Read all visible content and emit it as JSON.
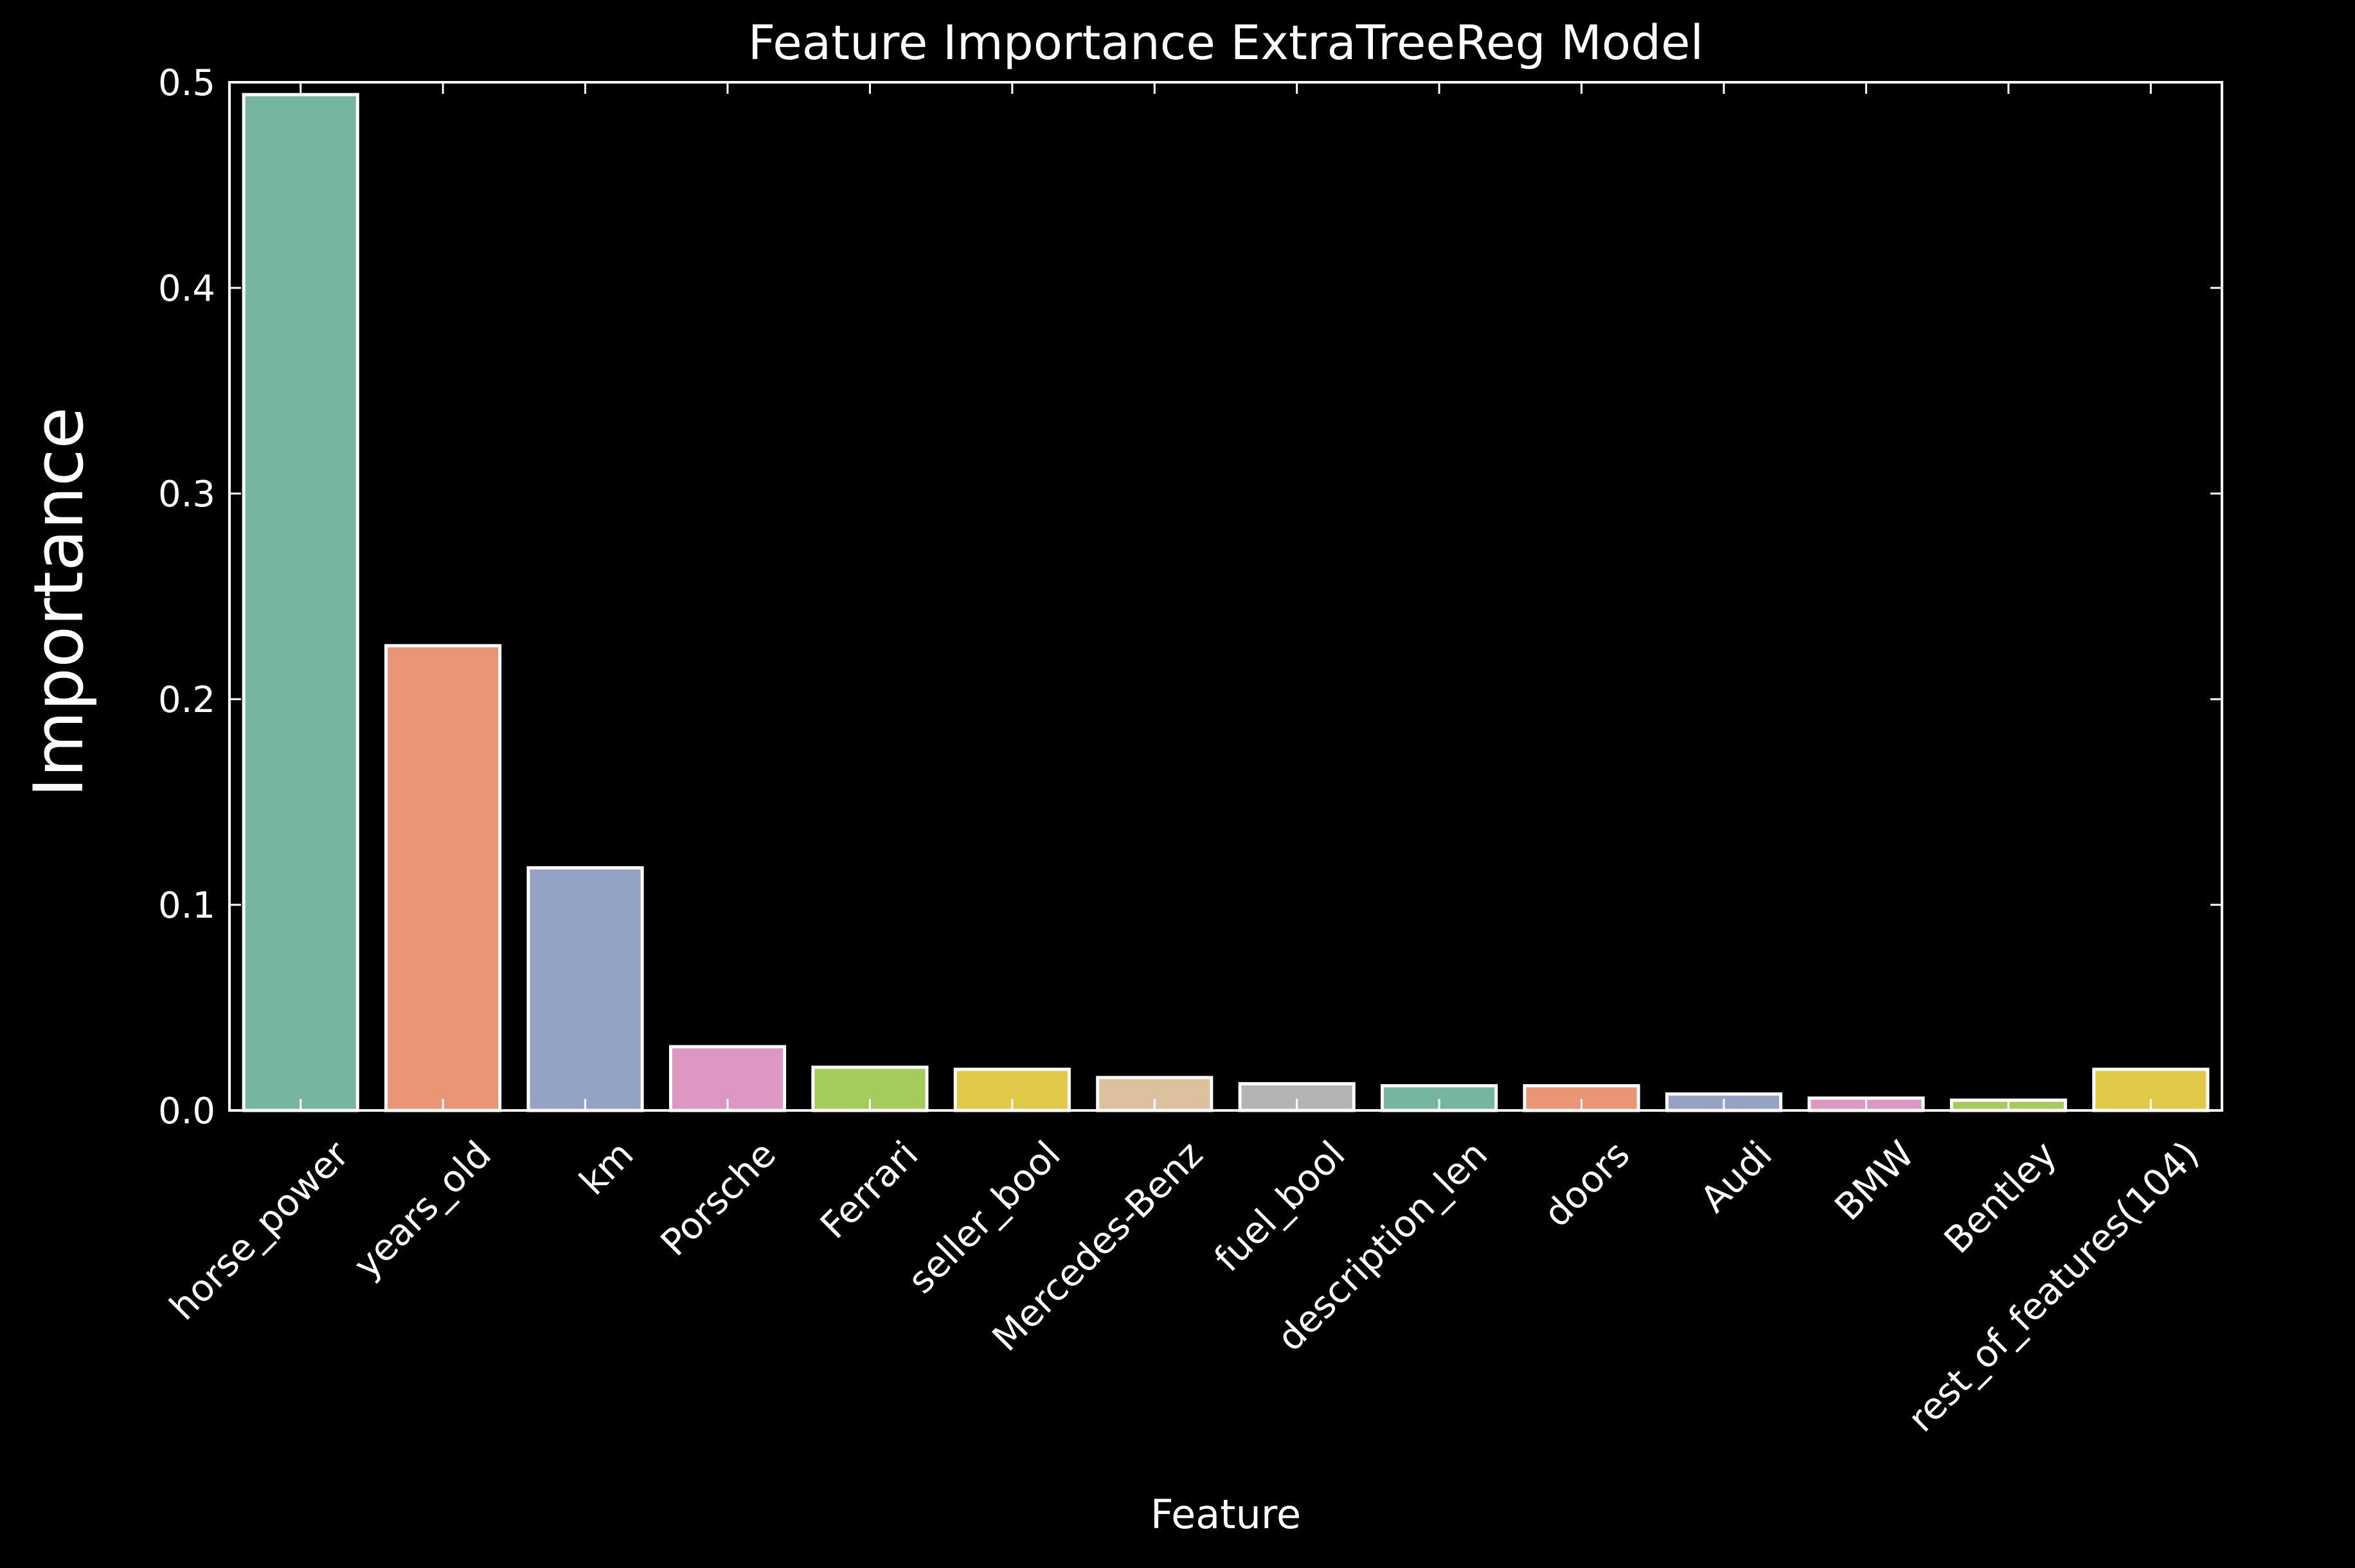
{
  "chart_data": {
    "type": "bar",
    "title": "Feature Importance ExtraTreeReg Model",
    "xlabel": "Feature",
    "ylabel": "Importance",
    "ylim": [
      0,
      0.5
    ],
    "yticks": [
      "0.0",
      "0.1",
      "0.2",
      "0.3",
      "0.4",
      "0.5"
    ],
    "grid": false,
    "legend": "none",
    "categories": [
      "horse_power",
      "years_old",
      "km",
      "Porsche",
      "Ferrari",
      "seller_bool",
      "Mercedes-Benz",
      "fuel_bool",
      "description_len",
      "doors",
      "Audi",
      "BMW",
      "Bentley",
      "rest_of_features(104)"
    ],
    "values": [
      0.494,
      0.226,
      0.118,
      0.031,
      0.021,
      0.02,
      0.016,
      0.013,
      0.012,
      0.012,
      0.008,
      0.006,
      0.005,
      0.02
    ],
    "colors": [
      "#76b6a0",
      "#e89676",
      "#94a3c3",
      "#dc97c2",
      "#a5cb5d",
      "#e3c94a",
      "#dbc19d",
      "#b4b4b4",
      "#76b6a0",
      "#e89676",
      "#94a3c3",
      "#dc97c2",
      "#a5cb5d",
      "#e3c94a"
    ]
  }
}
